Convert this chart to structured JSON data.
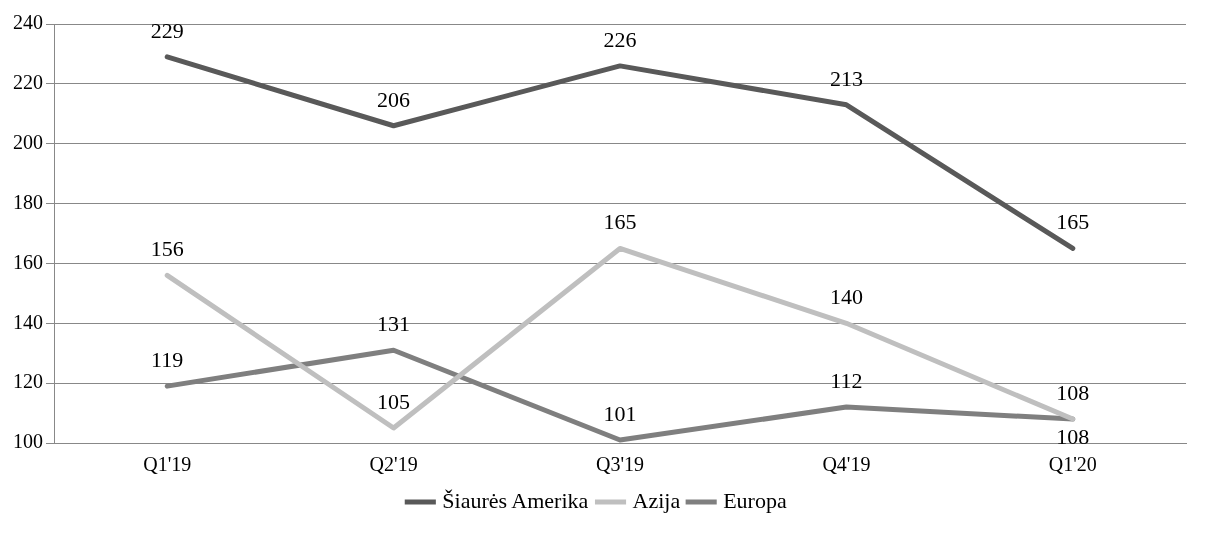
{
  "chart_data": {
    "type": "line",
    "categories": [
      "Q1'19",
      "Q2'19",
      "Q3'19",
      "Q4'19",
      "Q1'20"
    ],
    "series": [
      {
        "name": "Šiaurės Amerika",
        "color": "#595959",
        "values": [
          229,
          206,
          226,
          213,
          165
        ]
      },
      {
        "name": "Azija",
        "color": "#bfbfbf",
        "values": [
          156,
          105,
          165,
          140,
          108
        ]
      },
      {
        "name": "Europa",
        "color": "#7f7f7f",
        "values": [
          119,
          131,
          101,
          112,
          108
        ]
      }
    ],
    "ylim": [
      100,
      240
    ],
    "yticks": [
      100,
      120,
      140,
      160,
      180,
      200,
      220,
      240
    ],
    "grid": "y",
    "legend": "bottom",
    "data_labels": true,
    "marker": "none",
    "line_style": "solid"
  }
}
